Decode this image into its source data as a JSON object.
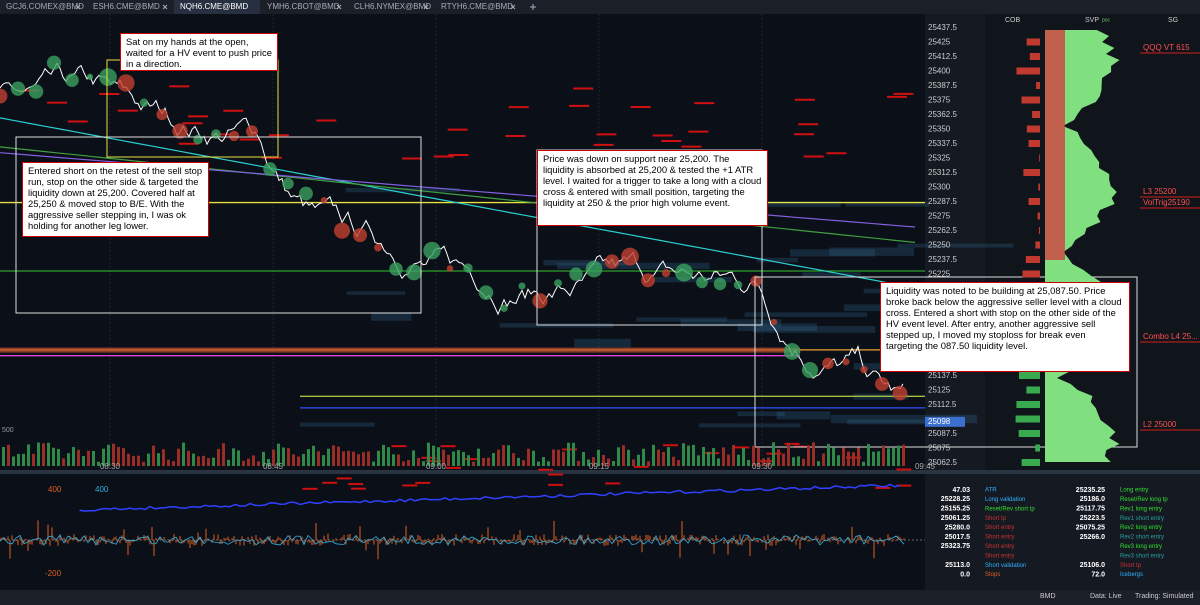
{
  "tabs": [
    "GCJ6.COMEX@BMD",
    "ESH6.CME@BMD",
    "NQH6.CME@BMD",
    "YMH6.CBOT@BMD",
    "CLH6.NYMEX@BMD",
    "RTYH6.CME@BMD"
  ],
  "active_tab": "NQH6.CME@BMD",
  "panel_headers": {
    "cob": "COB",
    "svp": "SVP",
    "svp_sub": "poc",
    "sg": "SG"
  },
  "price_labels": [
    "25437.5",
    "25425",
    "25412.5",
    "25400",
    "25387.5",
    "25375",
    "25362.5",
    "25350",
    "25337.5",
    "25325",
    "25312.5",
    "25300",
    "25287.5",
    "25275",
    "25262.5",
    "25250",
    "25237.5",
    "25225",
    "25137.5",
    "25125",
    "25112.5",
    "25087.5",
    "25075",
    "25062.5"
  ],
  "current_price": "25098",
  "ladder_volumes": [
    "14",
    "7",
    "17",
    "3",
    "20",
    "16",
    "1",
    "646",
    "770",
    "890",
    "1228",
    "893",
    "644",
    "1023",
    "1289",
    "1095",
    "1334",
    "1202",
    "1096",
    "961",
    "962",
    "1078"
  ],
  "sg_tags": [
    "QQQ VT 615",
    "L3 25200",
    "VolTrig25190",
    "Combo L4 25...",
    "L2 25000"
  ],
  "time_labels": [
    "08:30",
    "08:45",
    "09:00",
    "09:15",
    "09:30",
    "09:45"
  ],
  "volume_axis_label": "500",
  "indicator_labels": [
    "400",
    "400",
    "-200"
  ],
  "annotations": [
    "Sat on my hands at the open, waited for a HV event to push price in a direction.",
    "Entered short on the retest of the sell stop run, stop on the other side & targeted the liquidity down at 25,200. Covered half at 25,250 & moved stop to B/E. With the aggressive seller stepping in, I was ok holding for another leg lower.",
    "Price was down on support near 25,200. The liquidity is absorbed at 25,200 & tested the +1 ATR level. I waited for a trigger to take a long with a cloud cross & entered with small position, targeting the liquidity at 250 & the prior high volume event.",
    "Liquidity was noted to be building at 25,087.50. Price broke back below the aggressive seller level with a cloud cross. Entered a short with stop on the other side of the HV event level. After entry, another aggressive sell stepped up, I moved my stoploss for break even targeting the 087.50 liquidity level."
  ],
  "stats_left": [
    {
      "value": "47.03",
      "label": "ATR"
    },
    {
      "value": "25228.25",
      "label": "Long validation"
    },
    {
      "value": "25155.25",
      "label": "Reset/Rev short tp"
    },
    {
      "value": "25061.25",
      "label": "Short tp"
    },
    {
      "value": "25280.0",
      "label": "Short entry"
    },
    {
      "value": "25017.5",
      "label": "Short entry"
    },
    {
      "value": "25323.75",
      "label": "Short entry"
    },
    {
      "value": "",
      "label": "Short entry"
    },
    {
      "value": "25113.0",
      "label": "Short validation"
    },
    {
      "value": "0.0",
      "label": "Stops"
    }
  ],
  "stats_right": [
    {
      "value": "25235.25",
      "label": "Long entry"
    },
    {
      "value": "25186.0",
      "label": "Reset/Rev long tp"
    },
    {
      "value": "25117.75",
      "label": "Rev1 long entry"
    },
    {
      "value": "25223.5",
      "label": "Rev1 short entry"
    },
    {
      "value": "25075.25",
      "label": "Rev2 long entry"
    },
    {
      "value": "25266.0",
      "label": "Rev2 short entry"
    },
    {
      "value": "",
      "label": "Rev3 long entry"
    },
    {
      "value": "",
      "label": "Rev3 short entry"
    },
    {
      "value": "25106.0",
      "label": "Short tp"
    },
    {
      "value": "72.0",
      "label": "Icebergs"
    }
  ],
  "status": {
    "source": "BMD",
    "data": "Data: Live",
    "trading": "Trading: Simulated"
  }
}
